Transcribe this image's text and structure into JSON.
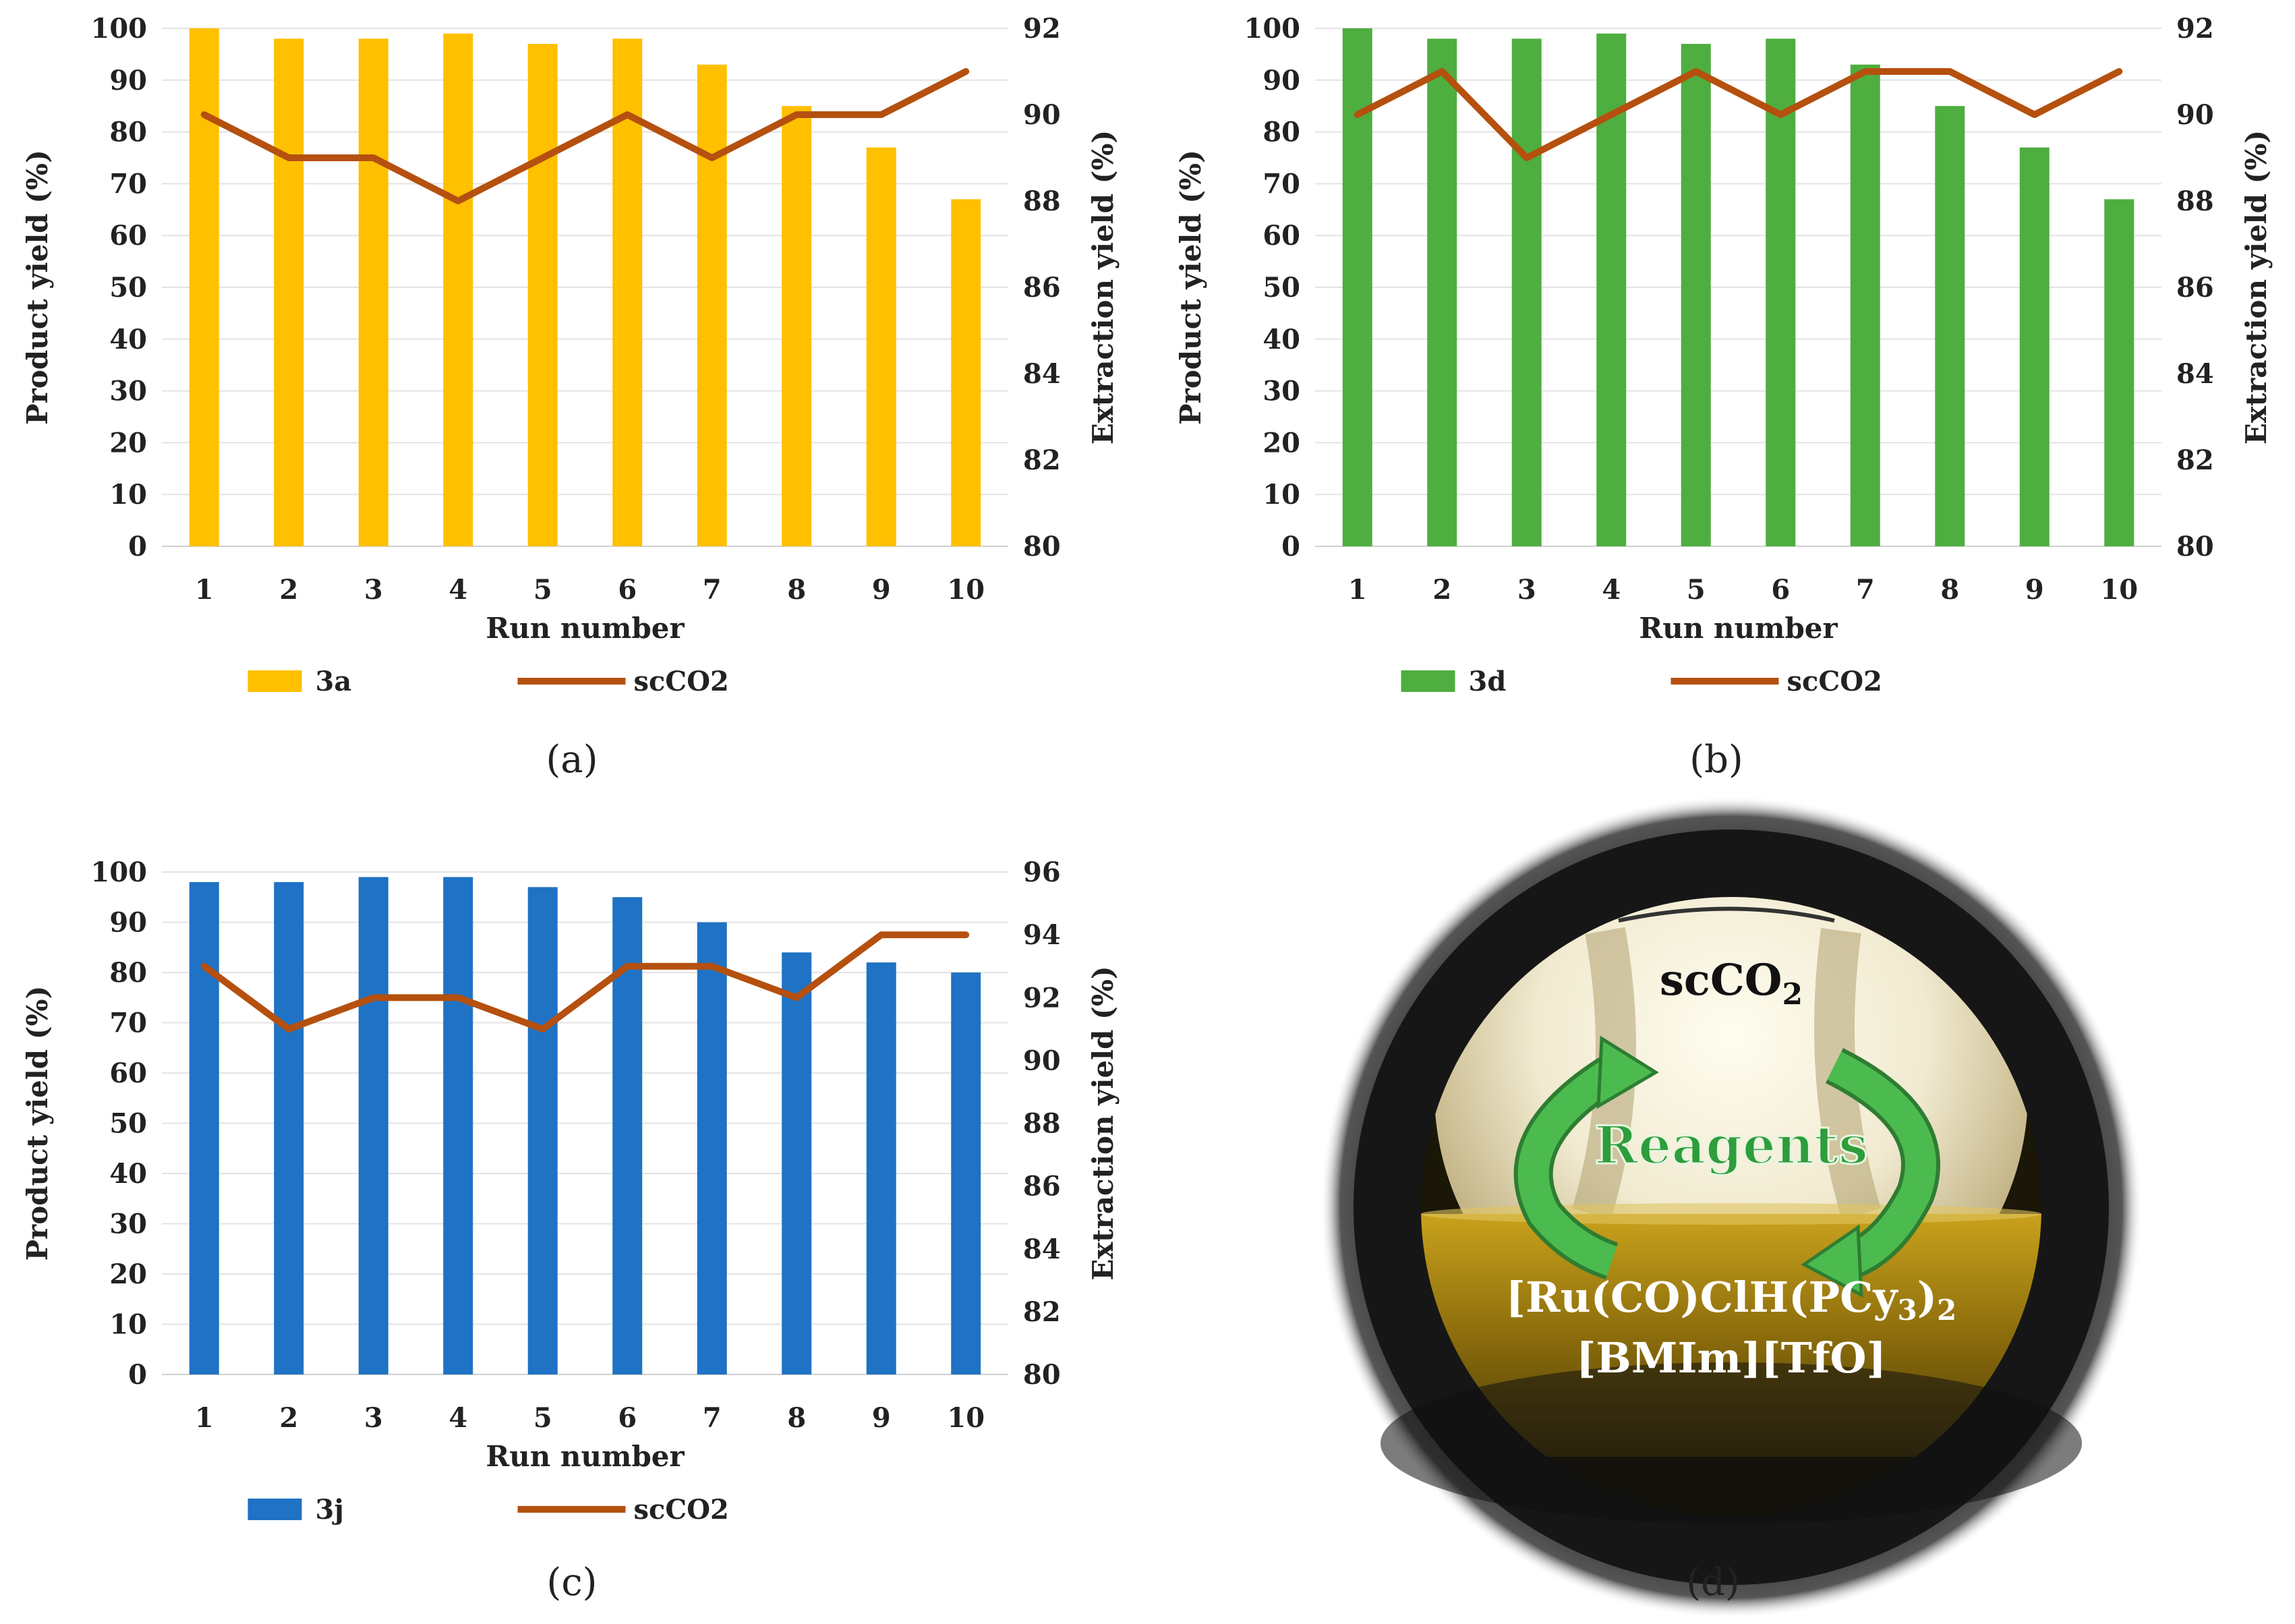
{
  "chart_data": [
    {
      "type": "bar",
      "panel_label": "(a)",
      "categories": [
        "1",
        "2",
        "3",
        "4",
        "5",
        "6",
        "7",
        "8",
        "9",
        "10"
      ],
      "series": [
        {
          "name": "3a",
          "kind": "bar",
          "axis": "left",
          "color": "#FFC000",
          "values": [
            100,
            98,
            98,
            99,
            97,
            98,
            93,
            85,
            77,
            67
          ]
        },
        {
          "name": "scCO2",
          "kind": "line",
          "axis": "right",
          "color": "#B5500F",
          "values": [
            90,
            89,
            89,
            88,
            89,
            90,
            89,
            90,
            90,
            91
          ]
        }
      ],
      "xlabel": "Run number",
      "ylabel": "Product yield  (%)",
      "y2label": "Extraction yield  (%)",
      "ylim": [
        0,
        100
      ],
      "yticks": [
        0,
        10,
        20,
        30,
        40,
        50,
        60,
        70,
        80,
        90,
        100
      ],
      "y2lim": [
        80,
        92
      ],
      "y2ticks": [
        80,
        82,
        84,
        86,
        88,
        90,
        92
      ],
      "grid": true,
      "legend": "bottom"
    },
    {
      "type": "bar",
      "panel_label": "(b)",
      "categories": [
        "1",
        "2",
        "3",
        "4",
        "5",
        "6",
        "7",
        "8",
        "9",
        "10"
      ],
      "series": [
        {
          "name": "3d",
          "kind": "bar",
          "axis": "left",
          "color": "#4EAE3F",
          "values": [
            100,
            98,
            98,
            99,
            97,
            98,
            93,
            85,
            77,
            67
          ]
        },
        {
          "name": "scCO2",
          "kind": "line",
          "axis": "right",
          "color": "#B5500F",
          "values": [
            90,
            91,
            89,
            90,
            91,
            90,
            91,
            91,
            90,
            91
          ]
        }
      ],
      "xlabel": "Run number",
      "ylabel": "Product yield  (%)",
      "y2label": "Extraction yield  (%)",
      "ylim": [
        0,
        100
      ],
      "yticks": [
        0,
        10,
        20,
        30,
        40,
        50,
        60,
        70,
        80,
        90,
        100
      ],
      "y2lim": [
        80,
        92
      ],
      "y2ticks": [
        80,
        82,
        84,
        86,
        88,
        90,
        92
      ],
      "grid": true,
      "legend": "bottom"
    },
    {
      "type": "bar",
      "panel_label": "(c)",
      "categories": [
        "1",
        "2",
        "3",
        "4",
        "5",
        "6",
        "7",
        "8",
        "9",
        "10"
      ],
      "series": [
        {
          "name": "3j",
          "kind": "bar",
          "axis": "left",
          "color": "#1F72C4",
          "values": [
            98,
            98,
            99,
            99,
            97,
            95,
            90,
            84,
            82,
            80
          ]
        },
        {
          "name": "scCO2",
          "kind": "line",
          "axis": "right",
          "color": "#B5500F",
          "values": [
            93,
            91,
            92,
            92,
            91,
            93,
            93,
            92,
            94,
            94
          ]
        }
      ],
      "xlabel": "Run number",
      "ylabel": "Product yield  (%)",
      "y2label": "Extraction yield  (%)",
      "ylim": [
        0,
        100
      ],
      "yticks": [
        0,
        10,
        20,
        30,
        40,
        50,
        60,
        70,
        80,
        90,
        100
      ],
      "y2lim": [
        80,
        96
      ],
      "y2ticks": [
        80,
        82,
        84,
        86,
        88,
        90,
        92,
        94,
        96
      ],
      "grid": true,
      "legend": "bottom"
    }
  ],
  "photo": {
    "panel_label": "(d)",
    "label_top": "scCO",
    "label_top_sub": "2",
    "label_middle": "Reagents",
    "label_catalyst_prefix": "[Ru(CO)ClH(PCy",
    "label_catalyst_sub1": "3",
    "label_catalyst_close": ")",
    "label_catalyst_sub2": "2",
    "label_ionic_liquid": "[BMIm][TfO]",
    "colors": {
      "ring": "#1a1a1a",
      "gas": "#f4f0d8",
      "liquid": "#9a7a12",
      "arrow": "#3aa544"
    }
  }
}
